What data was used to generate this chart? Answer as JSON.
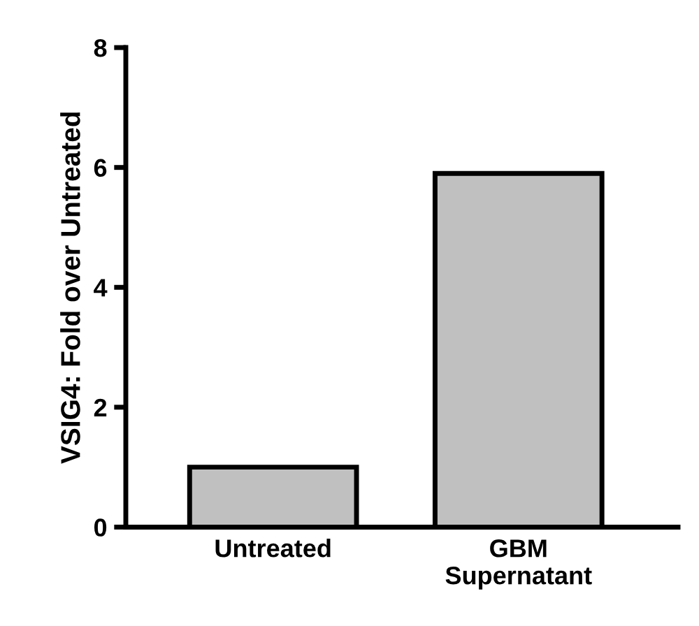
{
  "chart_data": {
    "type": "bar",
    "ylabel": "VSIG4: Fold over Untreated",
    "categories": [
      "Untreated",
      "GBM\nSupernatant"
    ],
    "values": [
      1.0,
      5.9
    ],
    "color": "#c0c0c0",
    "ylim": [
      0,
      8
    ],
    "yticks": [
      0,
      2,
      4,
      6,
      8
    ],
    "grid": false
  }
}
